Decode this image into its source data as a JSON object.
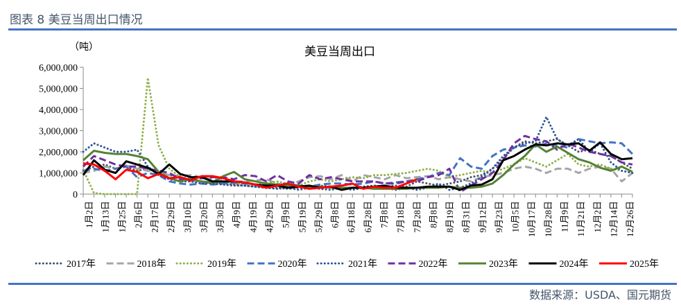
{
  "header": {
    "title": "图表 8  美豆当周出口情况"
  },
  "footer": {
    "source": "数据来源：USDA、国元期货"
  },
  "chart_data": {
    "type": "line",
    "title": "美豆当周出口",
    "ylabel": "（吨）",
    "xlabel": "",
    "ylim": [
      0,
      6000000
    ],
    "yticks": [
      "0",
      "1,000,000",
      "2,000,000",
      "3,000,000",
      "4,000,000",
      "5,000,000",
      "6,000,000"
    ],
    "grid": false,
    "legend": "bottom",
    "x_tick_labels": [
      "1月2日",
      "1月13日",
      "1月25日",
      "2月6日",
      "2月17日",
      "2月29日",
      "3月10日",
      "3月20日",
      "3月30日",
      "4月9日",
      "4月19日",
      "4月29日",
      "5月9日",
      "5月19日",
      "5月29日",
      "6月8日",
      "6月18日",
      "6月28日",
      "7月8日",
      "7月18日",
      "7月28日",
      "8月8日",
      "8月19日",
      "8月31日",
      "9月12日",
      "9月23日",
      "10月5日",
      "10月17日",
      "10月28日",
      "11月9日",
      "11月21日",
      "12月2日",
      "12月14日",
      "12月26日"
    ],
    "series": [
      {
        "name": "2017年",
        "color": "#44546a",
        "style": "dotted",
        "values": [
          1100000,
          1300000,
          1400000,
          1200000,
          1300000,
          1100000,
          1200000,
          1000000,
          900000,
          800000,
          700000,
          600000,
          500000,
          500000,
          450000,
          400000,
          350000,
          300000,
          300000,
          250000,
          300000,
          350000,
          400000,
          350000,
          300000,
          300000,
          350000,
          400000,
          350000,
          400000,
          350000,
          600000,
          500000,
          400000,
          500000,
          600000,
          800000,
          900000,
          1200000,
          1700000,
          2200000,
          2500000,
          2400000,
          2500000,
          2600000,
          2300000,
          2000000,
          2100000,
          1900000,
          1800000,
          1500000,
          1200000
        ]
      },
      {
        "name": "2018年",
        "color": "#a5a5a5",
        "style": "dashed",
        "values": [
          1000000,
          1100000,
          1300000,
          1200000,
          1350000,
          1200000,
          1100000,
          1000000,
          900000,
          850000,
          900000,
          800000,
          700000,
          700000,
          600000,
          600000,
          650000,
          700000,
          500000,
          400000,
          600000,
          800000,
          850000,
          700000,
          900000,
          600000,
          900000,
          800000,
          700000,
          900000,
          750000,
          800000,
          850000,
          700000,
          800000,
          700000,
          600000,
          800000,
          900000,
          1000000,
          1200000,
          1300000,
          1200000,
          1000000,
          1200000,
          1200000,
          1000000,
          1200000,
          1300000,
          1200000,
          600000,
          1000000
        ]
      },
      {
        "name": "2019年",
        "color": "#8fb04a",
        "style": "dotted",
        "values": [
          1150000,
          50000,
          0,
          0,
          0,
          0,
          5500000,
          2300000,
          1200000,
          800000,
          600000,
          600000,
          500000,
          600000,
          500000,
          500000,
          450000,
          500000,
          600000,
          500000,
          400000,
          600000,
          700000,
          600000,
          700000,
          800000,
          750000,
          900000,
          900000,
          950000,
          1000000,
          1100000,
          1200000,
          1100000,
          800000,
          900000,
          1000000,
          1100000,
          1000000,
          1200000,
          1400000,
          1700000,
          1500000,
          1300000,
          1600000,
          1900000,
          1400000,
          1300000,
          1400000,
          1200000,
          1100000,
          1000000
        ]
      },
      {
        "name": "2020年",
        "color": "#4472c4",
        "style": "dashed",
        "values": [
          1100000,
          1200000,
          1100000,
          1200000,
          1300000,
          800000,
          1000000,
          900000,
          600000,
          500000,
          450000,
          500000,
          450000,
          500000,
          550000,
          500000,
          450000,
          400000,
          450000,
          500000,
          400000,
          350000,
          450000,
          500000,
          500000,
          450000,
          500000,
          600000,
          500000,
          550000,
          600000,
          700000,
          800000,
          1000000,
          900000,
          1700000,
          1300000,
          1200000,
          1800000,
          2100000,
          2200000,
          2300000,
          2250000,
          2400000,
          2300000,
          2200000,
          2600000,
          2500000,
          2400000,
          2450000,
          2400000,
          1900000
        ]
      },
      {
        "name": "2021年",
        "color": "#2f5597",
        "style": "dotted",
        "values": [
          2000000,
          2400000,
          2200000,
          2000000,
          2000000,
          2100000,
          1300000,
          900000,
          700000,
          600000,
          600000,
          500000,
          500000,
          450000,
          400000,
          400000,
          350000,
          300000,
          250000,
          300000,
          200000,
          300000,
          250000,
          200000,
          300000,
          200000,
          300000,
          250000,
          300000,
          200000,
          300000,
          200000,
          300000,
          500000,
          200000,
          300000,
          500000,
          800000,
          1200000,
          1800000,
          2200000,
          2400000,
          2500000,
          3650000,
          2600000,
          2300000,
          2600000,
          2000000,
          2400000,
          1500000,
          1100000,
          1000000
        ]
      },
      {
        "name": "2022年",
        "color": "#7030a0",
        "style": "dashed",
        "values": [
          1300000,
          1800000,
          1600000,
          1400000,
          1300000,
          1300000,
          1200000,
          1100000,
          1000000,
          700000,
          700000,
          750000,
          800000,
          800000,
          700000,
          900000,
          850000,
          600000,
          900000,
          600000,
          500000,
          900000,
          700000,
          800000,
          700000,
          600000,
          600000,
          600000,
          500000,
          500000,
          600000,
          600000,
          800000,
          900000,
          1200000,
          100000,
          400000,
          700000,
          1000000,
          1600000,
          2400000,
          2750000,
          2600000,
          2500000,
          2100000,
          2400000,
          2200000,
          2000000,
          1900000,
          1800000,
          1500000,
          1400000
        ]
      },
      {
        "name": "2023年",
        "color": "#548235",
        "style": "solid",
        "values": [
          1600000,
          2050000,
          1950000,
          1900000,
          1900000,
          1800000,
          1650000,
          1050000,
          750000,
          600000,
          700000,
          600000,
          550000,
          850000,
          1050000,
          700000,
          600000,
          500000,
          450000,
          400000,
          400000,
          350000,
          350000,
          300000,
          300000,
          300000,
          300000,
          250000,
          250000,
          250000,
          250000,
          300000,
          300000,
          300000,
          350000,
          300000,
          300000,
          350000,
          500000,
          900000,
          1400000,
          1800000,
          2350000,
          2000000,
          2250000,
          1950000,
          1650000,
          1500000,
          1250000,
          1100000,
          1300000,
          1050000
        ]
      },
      {
        "name": "2024年",
        "color": "#000000",
        "style": "solid",
        "values": [
          900000,
          1600000,
          1150000,
          1000000,
          1550000,
          1400000,
          1250000,
          950000,
          1400000,
          950000,
          800000,
          800000,
          600000,
          600000,
          600000,
          550000,
          450000,
          400000,
          400000,
          300000,
          350000,
          400000,
          300000,
          350000,
          200000,
          300000,
          300000,
          350000,
          400000,
          300000,
          300000,
          300000,
          350000,
          350000,
          350000,
          200000,
          400000,
          450000,
          700000,
          1600000,
          1800000,
          2100000,
          2350000,
          2300000,
          2400000,
          2350000,
          2400000,
          2050000,
          2450000,
          1900000,
          1650000,
          1700000
        ]
      },
      {
        "name": "2025年",
        "color": "#ff0000",
        "style": "solid",
        "values": [
          1450000,
          1400000,
          1100000,
          700000,
          1150000,
          1050000,
          750000,
          950000,
          750000,
          800000,
          650000,
          850000,
          850000,
          750000,
          600000,
          550000,
          450000,
          300000,
          400000,
          500000,
          350000,
          250000,
          300000,
          350000,
          400000,
          500000,
          250000,
          350000,
          300000,
          300000,
          500000,
          700000
        ]
      }
    ]
  }
}
